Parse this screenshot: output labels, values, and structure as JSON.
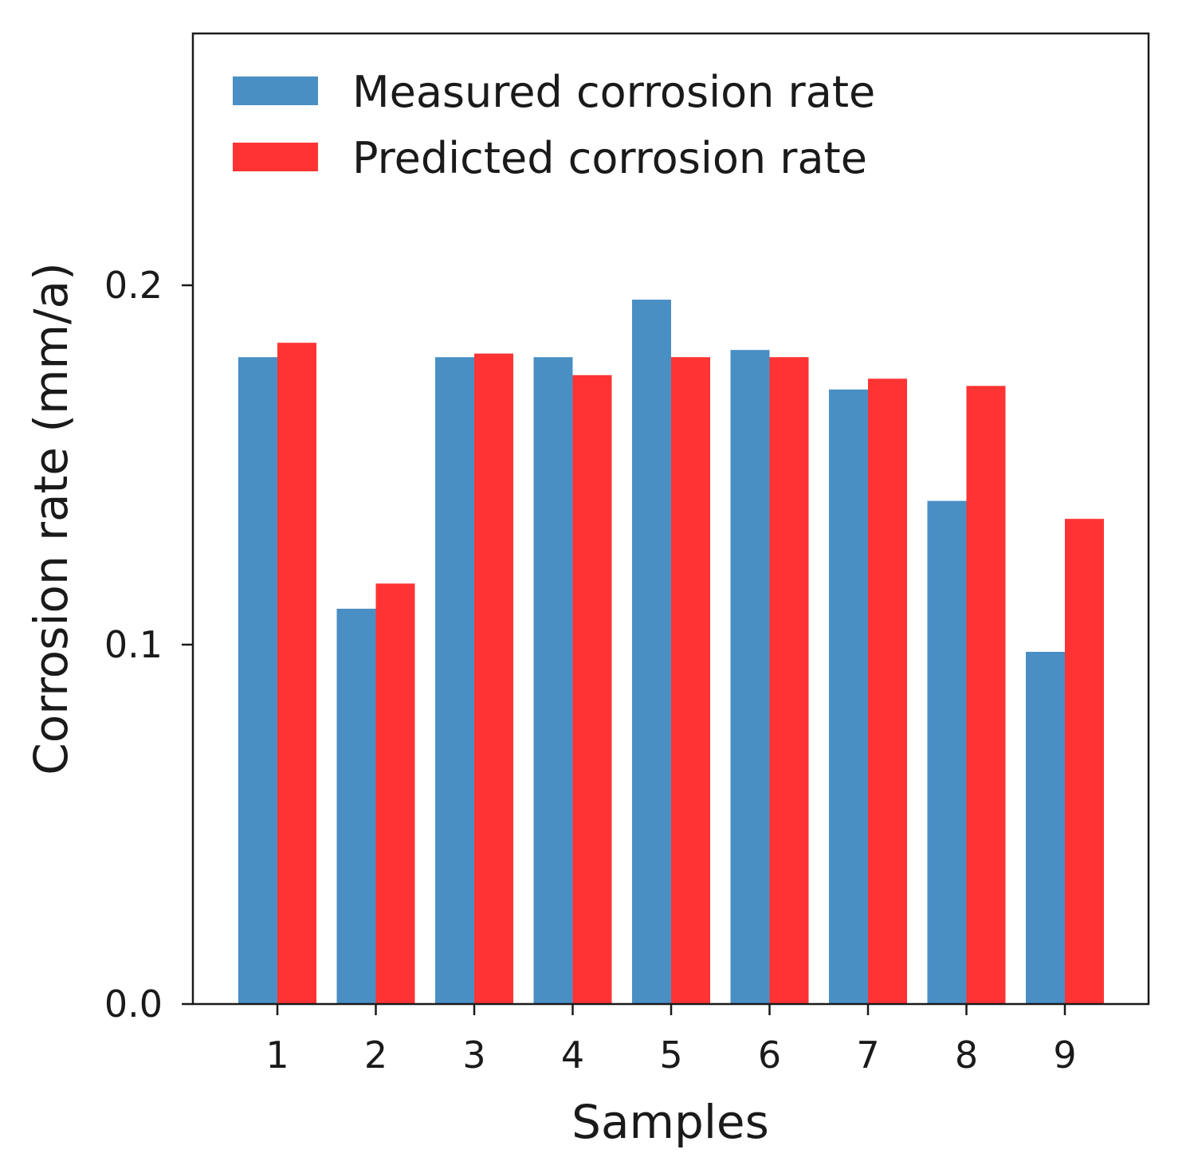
{
  "chart_data": {
    "type": "bar",
    "title": "",
    "xlabel": "Samples",
    "ylabel": "Corrosion rate (mm/a)",
    "categories": [
      "1",
      "2",
      "3",
      "4",
      "5",
      "6",
      "7",
      "8",
      "9"
    ],
    "series": [
      {
        "name": "Measured corrosion rate",
        "color": "#4a8fc4",
        "values": [
          0.18,
          0.11,
          0.18,
          0.18,
          0.196,
          0.182,
          0.171,
          0.14,
          0.098
        ]
      },
      {
        "name": "Predicted corrosion rate",
        "color": "#ff3333",
        "values": [
          0.184,
          0.117,
          0.181,
          0.175,
          0.18,
          0.18,
          0.174,
          0.172,
          0.135
        ]
      }
    ],
    "yticks": [
      0.0,
      0.1,
      0.2
    ],
    "ytick_labels": [
      "0.0",
      "0.1",
      "0.2"
    ],
    "ylim": [
      0,
      0.27
    ],
    "grid": false,
    "legend_position": "top-left"
  }
}
